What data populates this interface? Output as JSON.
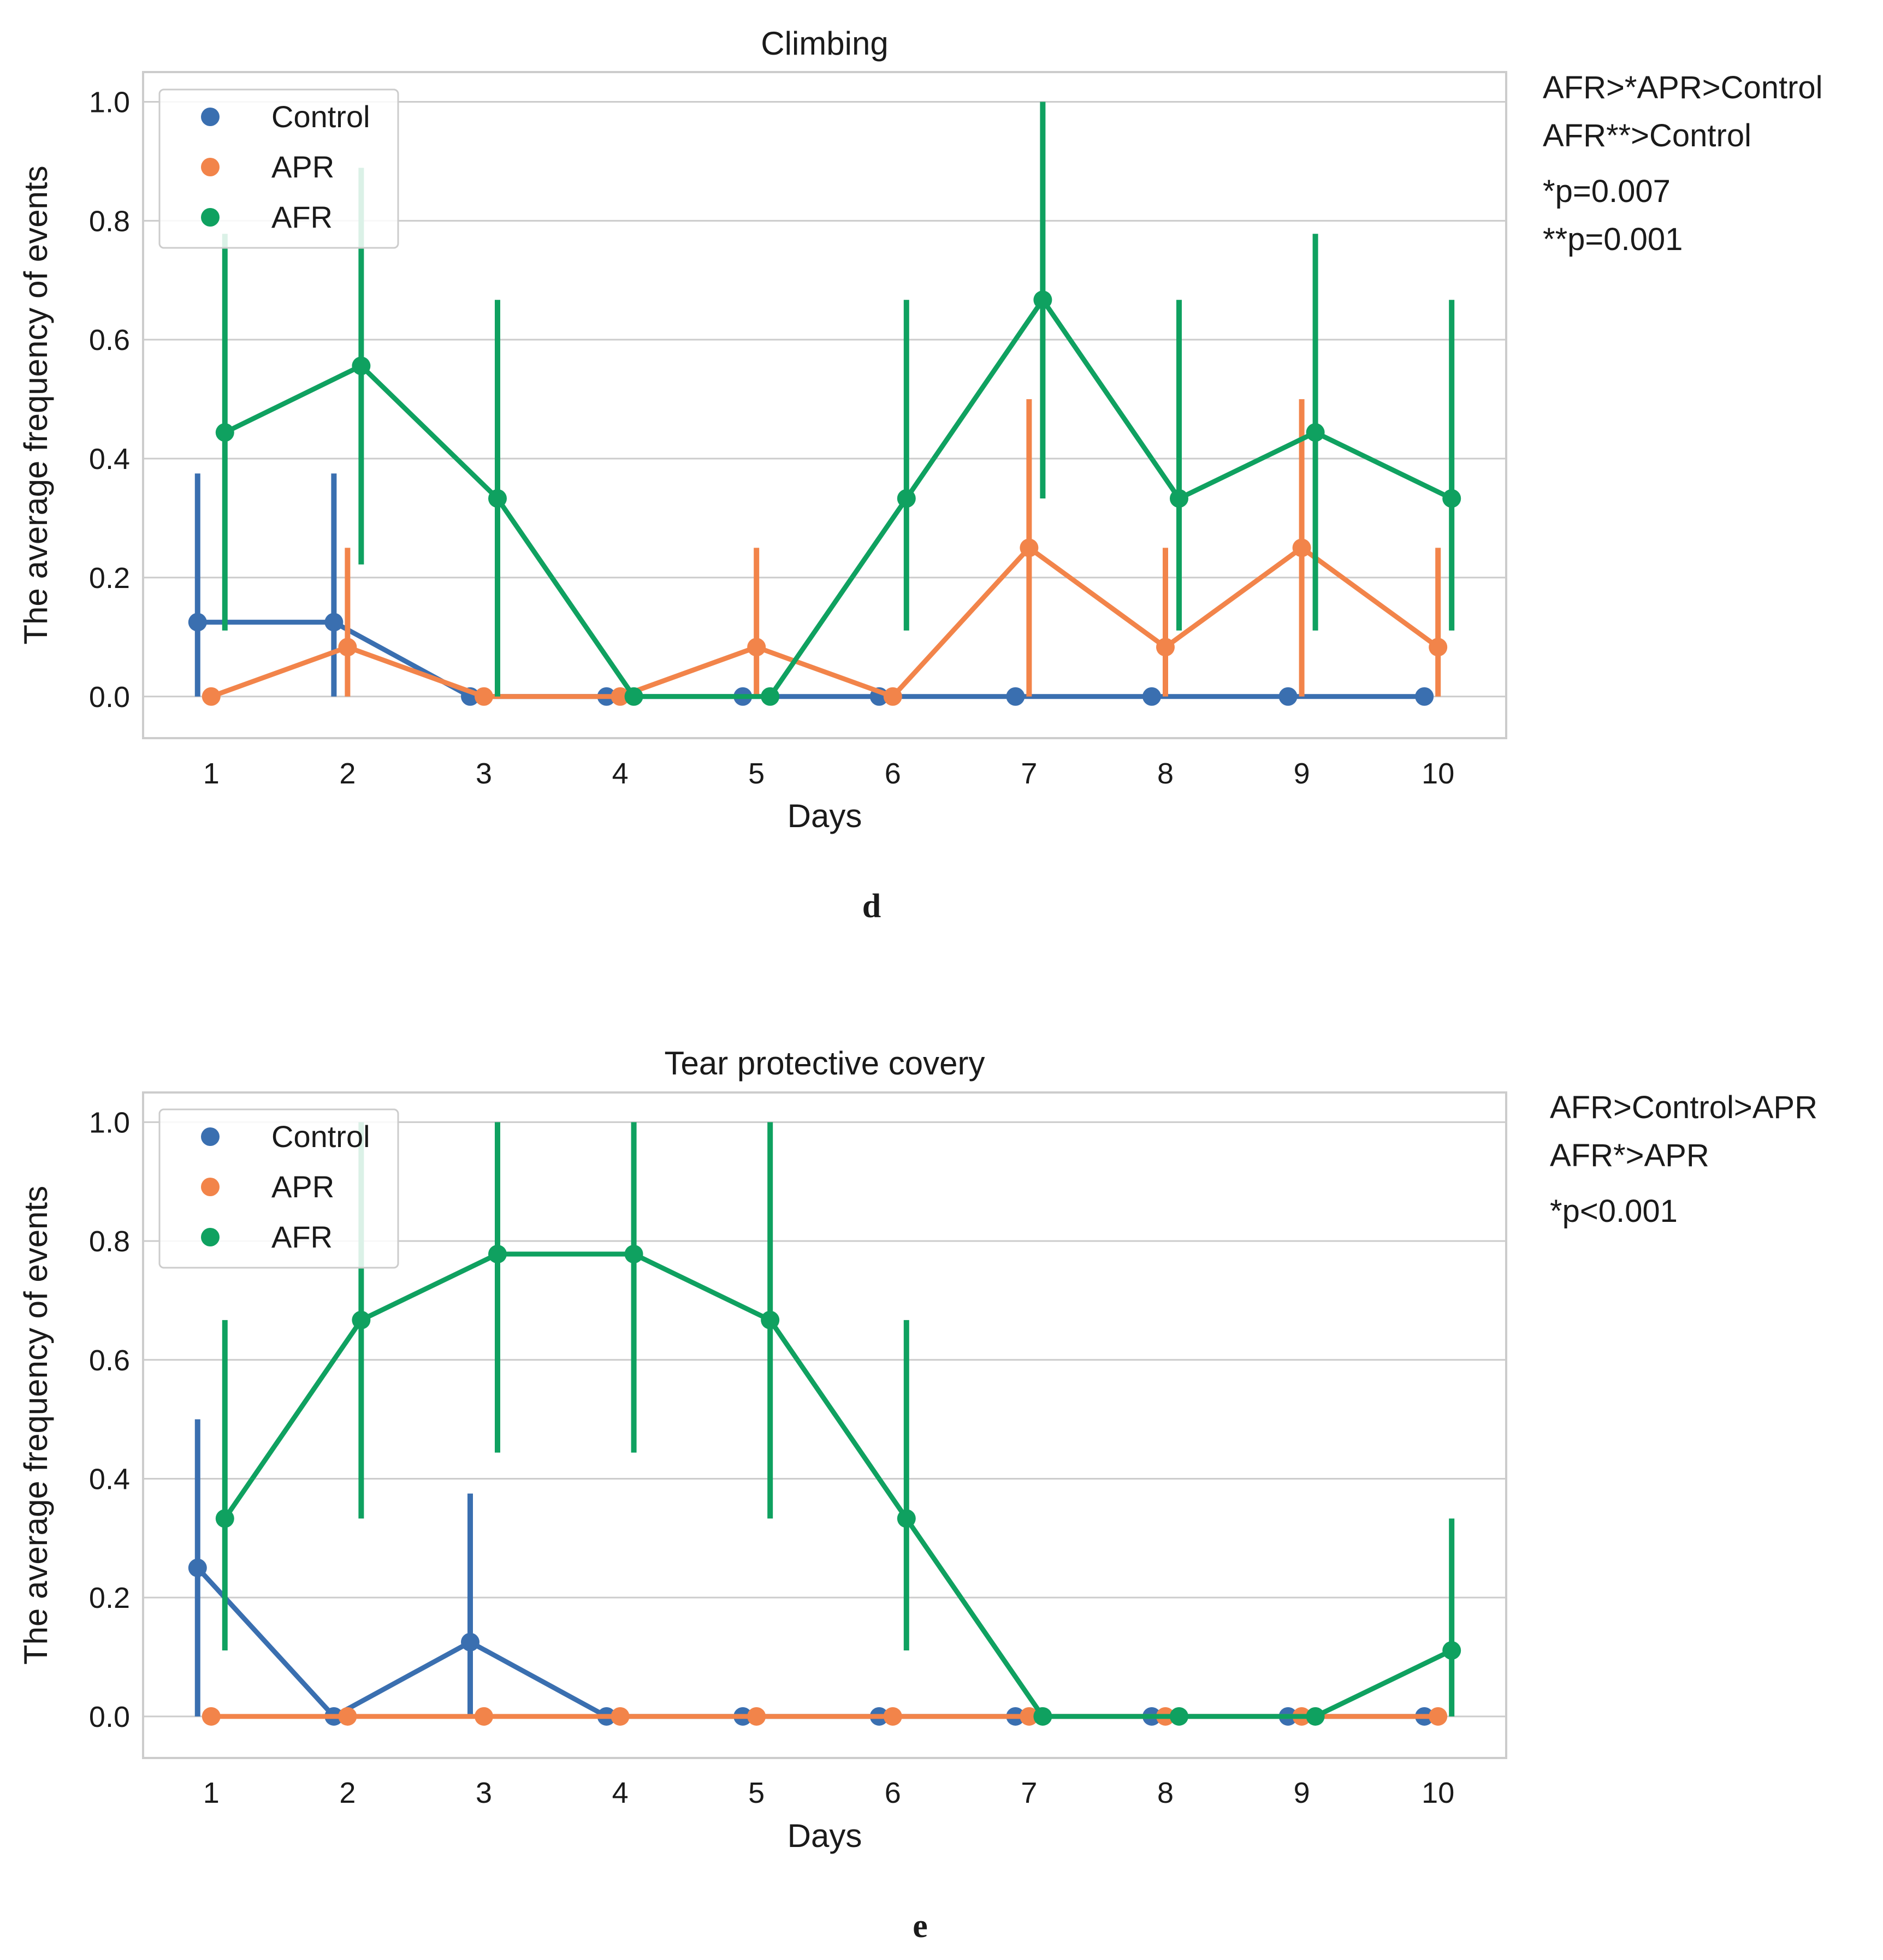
{
  "chart_data": [
    {
      "type": "line",
      "panel_letter": "d",
      "title": "Climbing",
      "xlabel": "Days",
      "ylabel": "The average frequency of events",
      "categories": [
        "1",
        "2",
        "3",
        "4",
        "5",
        "6",
        "7",
        "8",
        "9",
        "10"
      ],
      "ylim": [
        -0.07,
        1.05
      ],
      "yticks": [
        "0.0",
        "0.2",
        "0.4",
        "0.6",
        "0.8",
        "1.0"
      ],
      "grid": true,
      "legend_position": "top-left",
      "series": [
        {
          "name": "Control",
          "color": "#3a6fb0",
          "values": [
            0.125,
            0.125,
            0,
            0,
            0,
            0,
            0,
            0,
            0,
            0
          ],
          "err_low": [
            0,
            0,
            0,
            0,
            0,
            0,
            0,
            0,
            0,
            0
          ],
          "err_high": [
            0.375,
            0.375,
            0,
            0,
            0,
            0,
            0,
            0,
            0,
            0
          ]
        },
        {
          "name": "APR",
          "color": "#f2844a",
          "values": [
            0,
            0.083,
            0,
            0,
            0.083,
            0,
            0.25,
            0.083,
            0.25,
            0.083
          ],
          "err_low": [
            0,
            0,
            0,
            0,
            0,
            0,
            0,
            0,
            0,
            0
          ],
          "err_high": [
            0,
            0.25,
            0,
            0,
            0.25,
            0,
            0.5,
            0.25,
            0.5,
            0.25
          ]
        },
        {
          "name": "AFR",
          "color": "#0fa160",
          "values": [
            0.444,
            0.556,
            0.333,
            0,
            0,
            0.333,
            0.667,
            0.333,
            0.444,
            0.333
          ],
          "err_low": [
            0.111,
            0.222,
            0,
            0,
            0,
            0.111,
            0.333,
            0.111,
            0.111,
            0.111
          ],
          "err_high": [
            0.778,
            0.889,
            0.667,
            0,
            0,
            0.667,
            1.0,
            0.667,
            0.778,
            0.667
          ]
        }
      ],
      "annotations": [
        "AFR>*APR>Control",
        "AFR**>Control",
        "*p=0.007",
        "**p=0.001"
      ]
    },
    {
      "type": "line",
      "panel_letter": "e",
      "title": "Tear protective covery",
      "xlabel": "Days",
      "ylabel": "The average frequency of events",
      "categories": [
        "1",
        "2",
        "3",
        "4",
        "5",
        "6",
        "7",
        "8",
        "9",
        "10"
      ],
      "ylim": [
        -0.07,
        1.05
      ],
      "yticks": [
        "0.0",
        "0.2",
        "0.4",
        "0.6",
        "0.8",
        "1.0"
      ],
      "grid": true,
      "legend_position": "top-left",
      "series": [
        {
          "name": "Control",
          "color": "#3a6fb0",
          "values": [
            0.25,
            0,
            0.125,
            0,
            0,
            0,
            0,
            0,
            0,
            0
          ],
          "err_low": [
            0,
            0,
            0,
            0,
            0,
            0,
            0,
            0,
            0,
            0
          ],
          "err_high": [
            0.5,
            0,
            0.375,
            0,
            0,
            0,
            0,
            0,
            0,
            0
          ]
        },
        {
          "name": "APR",
          "color": "#f2844a",
          "values": [
            0,
            0,
            0,
            0,
            0,
            0,
            0,
            0,
            0,
            0
          ],
          "err_low": [
            0,
            0,
            0,
            0,
            0,
            0,
            0,
            0,
            0,
            0
          ],
          "err_high": [
            0,
            0,
            0,
            0,
            0,
            0,
            0,
            0,
            0,
            0
          ]
        },
        {
          "name": "AFR",
          "color": "#0fa160",
          "values": [
            0.333,
            0.667,
            0.778,
            0.778,
            0.667,
            0.333,
            0,
            0,
            0,
            0.111
          ],
          "err_low": [
            0.111,
            0.333,
            0.444,
            0.444,
            0.333,
            0.111,
            0,
            0,
            0,
            0
          ],
          "err_high": [
            0.667,
            1.0,
            1.0,
            1.0,
            1.0,
            0.667,
            0,
            0,
            0,
            0.333
          ]
        }
      ],
      "annotations": [
        "AFR>Control>APR",
        "AFR*>APR",
        "*p<0.001"
      ]
    }
  ]
}
